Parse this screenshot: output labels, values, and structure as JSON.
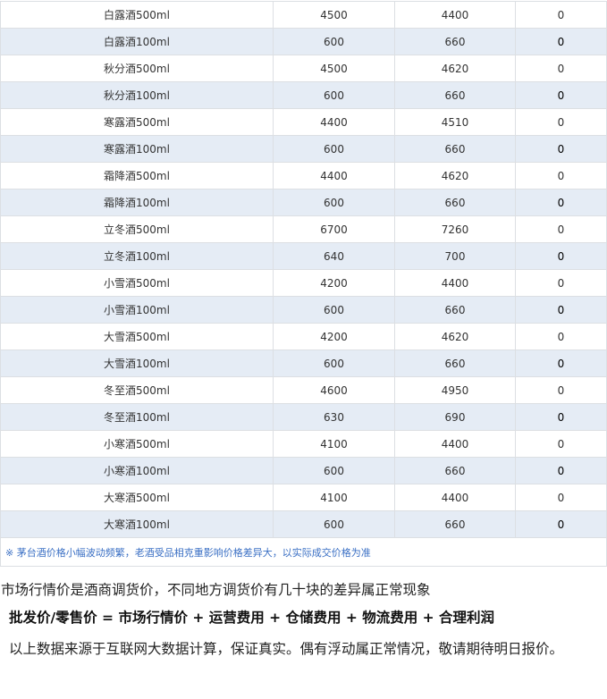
{
  "table": {
    "rows": [
      [
        "白露酒500ml",
        "4500",
        "4400",
        "0"
      ],
      [
        "白露酒100ml",
        "600",
        "660",
        "0"
      ],
      [
        "秋分酒500ml",
        "4500",
        "4620",
        "0"
      ],
      [
        "秋分酒100ml",
        "600",
        "660",
        "0"
      ],
      [
        "寒露酒500ml",
        "4400",
        "4510",
        "0"
      ],
      [
        "寒露酒100ml",
        "600",
        "660",
        "0"
      ],
      [
        "霜降酒500ml",
        "4400",
        "4620",
        "0"
      ],
      [
        "霜降酒100ml",
        "600",
        "660",
        "0"
      ],
      [
        "立冬酒500ml",
        "6700",
        "7260",
        "0"
      ],
      [
        "立冬酒100ml",
        "640",
        "700",
        "0"
      ],
      [
        "小雪酒500ml",
        "4200",
        "4400",
        "0"
      ],
      [
        "小雪酒100ml",
        "600",
        "660",
        "0"
      ],
      [
        "大雪酒500ml",
        "4200",
        "4620",
        "0"
      ],
      [
        "大雪酒100ml",
        "600",
        "660",
        "0"
      ],
      [
        "冬至酒500ml",
        "4600",
        "4950",
        "0"
      ],
      [
        "冬至酒100ml",
        "630",
        "690",
        "0"
      ],
      [
        "小寒酒500ml",
        "4100",
        "4400",
        "0"
      ],
      [
        "小寒酒100ml",
        "600",
        "660",
        "0"
      ],
      [
        "大寒酒500ml",
        "4100",
        "4400",
        "0"
      ],
      [
        "大寒酒100ml",
        "600",
        "660",
        "0"
      ]
    ],
    "note": "※ 茅台酒价格小幅波动频繁，老酒受品相克重影响价格差异大，以实际成交价格为准"
  },
  "text": {
    "line1": "市场行情价是酒商调货价，不同地方调货价有几十块的差异属正常现象",
    "formula": "批发价/零售价 = 市场行情价 + 运营费用 + 仓储费用 + 物流费用 + 合理利润",
    "disclaimer": "以上数据来源于互联网大数据计算，保证真实。偶有浮动属正常情况，敬请期待明日报价。"
  }
}
